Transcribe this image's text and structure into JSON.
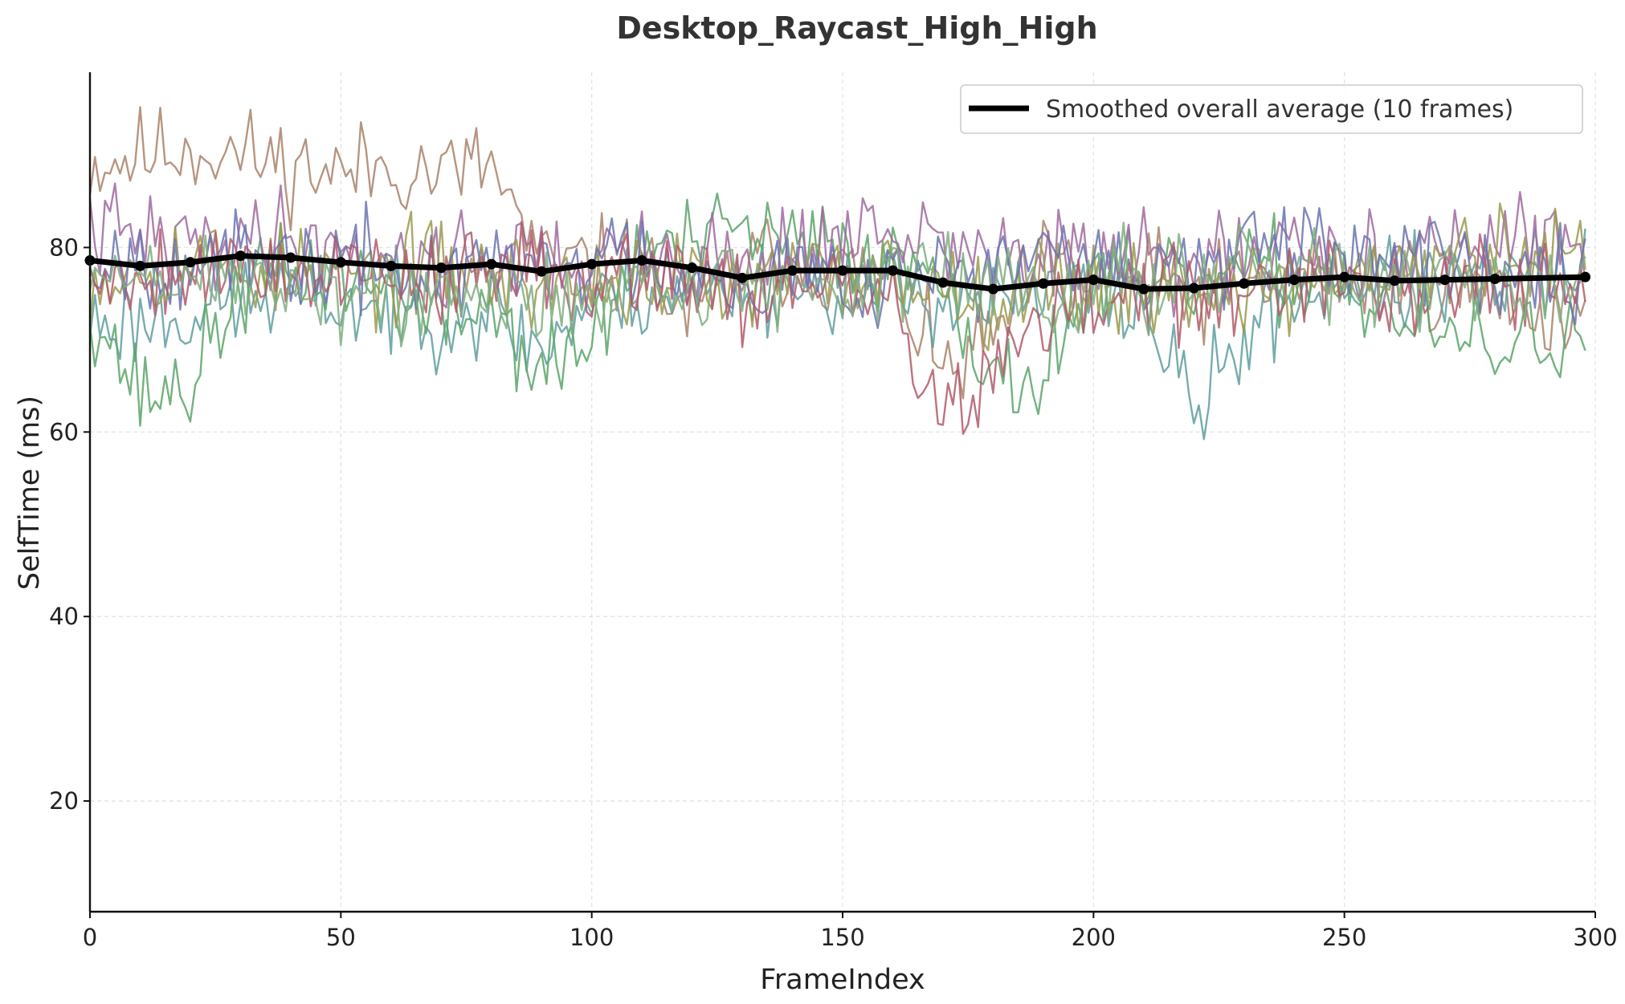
{
  "chart_data": {
    "type": "line",
    "title": "Desktop_Raycast_High_High",
    "xlabel": "FrameIndex",
    "ylabel": "SelfTime (ms)",
    "xlim": [
      0,
      300
    ],
    "ylim": [
      8,
      99
    ],
    "xticks": [
      0,
      50,
      100,
      150,
      200,
      250,
      300
    ],
    "yticks": [
      20,
      40,
      60,
      80
    ],
    "grid": true,
    "legend": {
      "position": "top-right",
      "entries": [
        "Smoothed overall average (10 frames)"
      ]
    },
    "average_series": {
      "name": "Smoothed overall average (10 frames)",
      "color": "#000000",
      "x": [
        0,
        10,
        20,
        30,
        40,
        50,
        60,
        70,
        80,
        90,
        100,
        110,
        120,
        130,
        140,
        150,
        160,
        170,
        180,
        190,
        200,
        210,
        220,
        230,
        240,
        250,
        260,
        270,
        280,
        298
      ],
      "values": [
        78.6,
        78.0,
        78.4,
        79.1,
        78.9,
        78.4,
        78.0,
        77.8,
        78.2,
        77.4,
        78.2,
        78.6,
        77.8,
        76.7,
        77.5,
        77.5,
        77.5,
        76.2,
        75.5,
        76.1,
        76.5,
        75.5,
        75.6,
        76.1,
        76.5,
        76.8,
        76.4,
        76.5,
        76.6,
        76.8
      ]
    },
    "run_series": [
      {
        "color": "#a9826a",
        "base": [
          89,
          90,
          91,
          90,
          89,
          88,
          89,
          88,
          89,
          78,
          78,
          78,
          72,
          78,
          79,
          77,
          77,
          66,
          70,
          78,
          77,
          77,
          75,
          76,
          76,
          77,
          77,
          76,
          75,
          73,
          72
        ],
        "seed": 11
      },
      {
        "color": "#5f9ea0",
        "base": [
          72,
          72,
          73,
          74,
          75,
          74,
          73,
          73,
          73,
          69,
          74,
          75,
          75,
          76,
          76,
          76,
          75,
          75,
          74,
          74,
          75,
          74,
          62,
          70,
          75,
          76,
          76,
          76,
          76,
          77,
          77
        ],
        "seed": 23
      },
      {
        "color": "#5aa469",
        "base": [
          74,
          64,
          65,
          76,
          77,
          77,
          75,
          72,
          74,
          66,
          70,
          80,
          80,
          82,
          80,
          80,
          78,
          79,
          64,
          67,
          76,
          75,
          76,
          77,
          77,
          77,
          72,
          70,
          69,
          70,
          72
        ],
        "seed": 37
      },
      {
        "color": "#9f6a9f",
        "base": [
          82,
          81,
          80,
          81,
          81,
          80,
          79,
          79,
          79,
          79,
          78,
          79,
          79,
          78,
          80,
          81,
          81,
          80,
          79,
          79,
          79,
          78,
          78,
          78,
          79,
          79,
          79,
          80,
          80,
          80,
          80
        ],
        "seed": 41
      },
      {
        "color": "#9a9a4e",
        "base": [
          77,
          78,
          79,
          78,
          77,
          77,
          77,
          78,
          77,
          76,
          76,
          77,
          76,
          75,
          77,
          77,
          77,
          76,
          75,
          76,
          76,
          75,
          76,
          76,
          76,
          77,
          77,
          78,
          79,
          79,
          78
        ],
        "seed": 53
      },
      {
        "color": "#6a73b0",
        "base": [
          79,
          79,
          79,
          78,
          78,
          78,
          78,
          77,
          78,
          78,
          79,
          79,
          78,
          77,
          77,
          77,
          77,
          78,
          77,
          79,
          78,
          78,
          78,
          79,
          79,
          79,
          78,
          78,
          78,
          79,
          79
        ],
        "seed": 67
      },
      {
        "color": "#b05a6a",
        "base": [
          77,
          77,
          78,
          78,
          78,
          77,
          77,
          77,
          77,
          77,
          77,
          78,
          77,
          75,
          76,
          75,
          74,
          62,
          66,
          72,
          74,
          75,
          75,
          75,
          75,
          76,
          76,
          76,
          76,
          76,
          74
        ],
        "seed": 79
      },
      {
        "color": "#7fae7f",
        "base": [
          76,
          77,
          77,
          76,
          76,
          75,
          75,
          74,
          74,
          75,
          75,
          76,
          76,
          76,
          76,
          76,
          77,
          76,
          76,
          76,
          76,
          76,
          76,
          77,
          77,
          77,
          76,
          76,
          76,
          76,
          76
        ],
        "seed": 89
      }
    ]
  }
}
